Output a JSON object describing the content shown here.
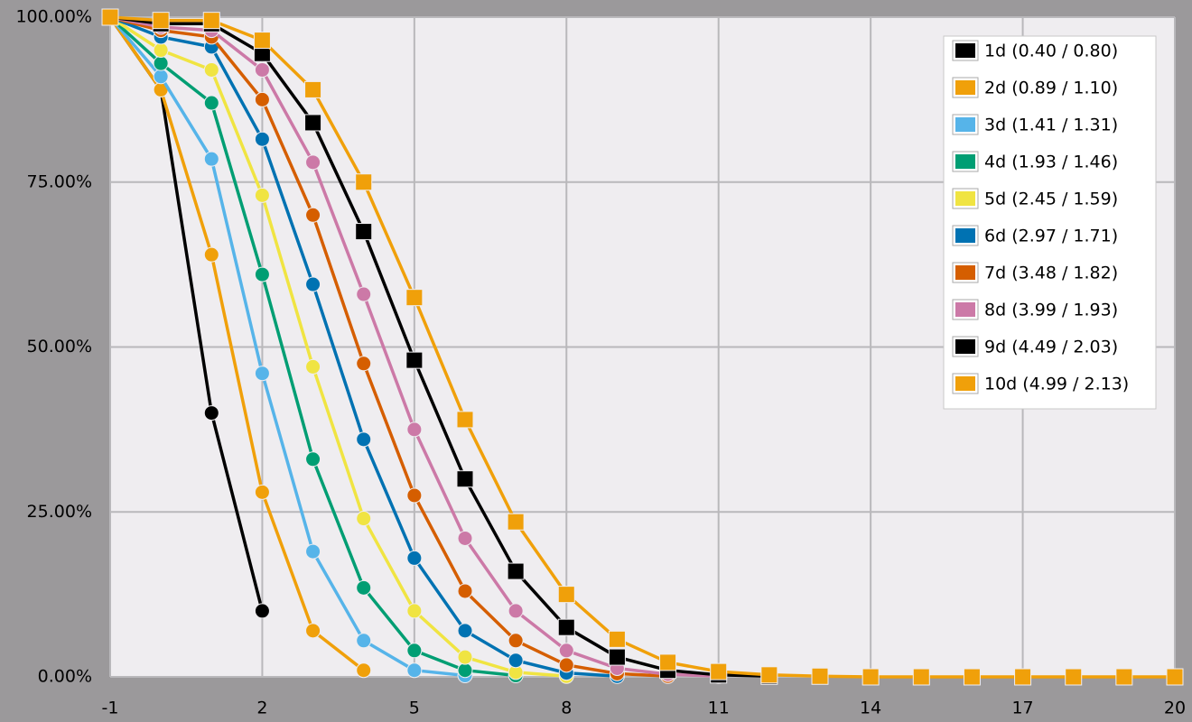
{
  "chart_data": {
    "type": "line",
    "x": [
      -1,
      0,
      1,
      2,
      3,
      4,
      5,
      6,
      7,
      8,
      9,
      10,
      11,
      12,
      13,
      14,
      15,
      16,
      17,
      18,
      19,
      20
    ],
    "xlim": [
      -1,
      20
    ],
    "xticks": [
      -1,
      2,
      5,
      8,
      11,
      14,
      17,
      20
    ],
    "ylim": [
      0,
      100
    ],
    "yticks": [
      {
        "value": 0,
        "label": "0.00%"
      },
      {
        "value": 25,
        "label": "25.00%"
      },
      {
        "value": 50,
        "label": "50.00%"
      },
      {
        "value": 75,
        "label": "75.00%"
      },
      {
        "value": 100,
        "label": "100.00%"
      }
    ],
    "grid": true,
    "legend": "upper right",
    "series": [
      {
        "name": "1d (0.40 / 0.80)",
        "color": "#000000",
        "marker": "circle",
        "values": [
          100,
          89,
          40,
          10,
          null,
          null,
          null,
          null,
          null,
          null,
          null,
          null,
          null,
          null,
          null,
          null,
          null,
          null,
          null,
          null,
          null,
          null
        ]
      },
      {
        "name": "2d (0.89 / 1.10)",
        "color": "#f0a00a",
        "marker": "circle",
        "values": [
          100,
          89,
          64,
          28,
          7,
          1,
          null,
          null,
          null,
          null,
          null,
          null,
          null,
          null,
          null,
          null,
          null,
          null,
          null,
          null,
          null,
          null
        ]
      },
      {
        "name": "3d (1.41 / 1.31)",
        "color": "#56b4e9",
        "marker": "circle",
        "values": [
          100,
          91,
          78.5,
          46,
          19,
          5.5,
          1,
          0.2,
          null,
          null,
          null,
          null,
          null,
          null,
          null,
          null,
          null,
          null,
          null,
          null,
          null,
          null
        ]
      },
      {
        "name": "4d (1.93 / 1.46)",
        "color": "#009e73",
        "marker": "circle",
        "values": [
          100,
          93,
          87,
          61,
          33,
          13.5,
          4,
          1,
          0.2,
          null,
          null,
          null,
          null,
          null,
          null,
          null,
          null,
          null,
          null,
          null,
          null,
          null
        ]
      },
      {
        "name": "5d (2.45 / 1.59)",
        "color": "#f0e442",
        "marker": "circle",
        "values": [
          100,
          95,
          92,
          73,
          47,
          24,
          10,
          3,
          0.7,
          0.1,
          null,
          null,
          null,
          null,
          null,
          null,
          null,
          null,
          null,
          null,
          null,
          null
        ]
      },
      {
        "name": "6d (2.97 / 1.71)",
        "color": "#0072b2",
        "marker": "circle",
        "values": [
          100,
          97,
          95.5,
          81.5,
          59.5,
          36,
          18,
          7,
          2.5,
          0.6,
          0.1,
          null,
          null,
          null,
          null,
          null,
          null,
          null,
          null,
          null,
          null,
          null
        ]
      },
      {
        "name": "7d (3.48 / 1.82)",
        "color": "#d55e00",
        "marker": "circle",
        "values": [
          100,
          98,
          97,
          87.5,
          70,
          47.5,
          27.5,
          13,
          5.5,
          1.8,
          0.5,
          0.1,
          null,
          null,
          null,
          null,
          null,
          null,
          null,
          null,
          null,
          null
        ]
      },
      {
        "name": "8d (3.99 / 1.93)",
        "color": "#cc79a7",
        "marker": "circle",
        "values": [
          100,
          98.5,
          98,
          92,
          78,
          58,
          37.5,
          21,
          10,
          4,
          1.3,
          0.4,
          0.1,
          null,
          null,
          null,
          null,
          null,
          null,
          null,
          null,
          null
        ]
      },
      {
        "name": "9d (4.49 / 2.03)",
        "color": "#000000",
        "marker": "square",
        "values": [
          100,
          99,
          99,
          94.5,
          84,
          67.5,
          48,
          30,
          16,
          7.5,
          3,
          1,
          0.3,
          0.1,
          null,
          null,
          null,
          null,
          null,
          null,
          null,
          null
        ]
      },
      {
        "name": "10d (4.99 / 2.13)",
        "color": "#f0a00a",
        "marker": "square",
        "values": [
          100,
          99.5,
          99.5,
          96.5,
          89,
          75,
          57.5,
          39,
          23.5,
          12.5,
          5.7,
          2.2,
          0.8,
          0.3,
          0.1,
          0,
          0,
          0,
          0,
          0,
          0,
          0
        ]
      }
    ]
  }
}
